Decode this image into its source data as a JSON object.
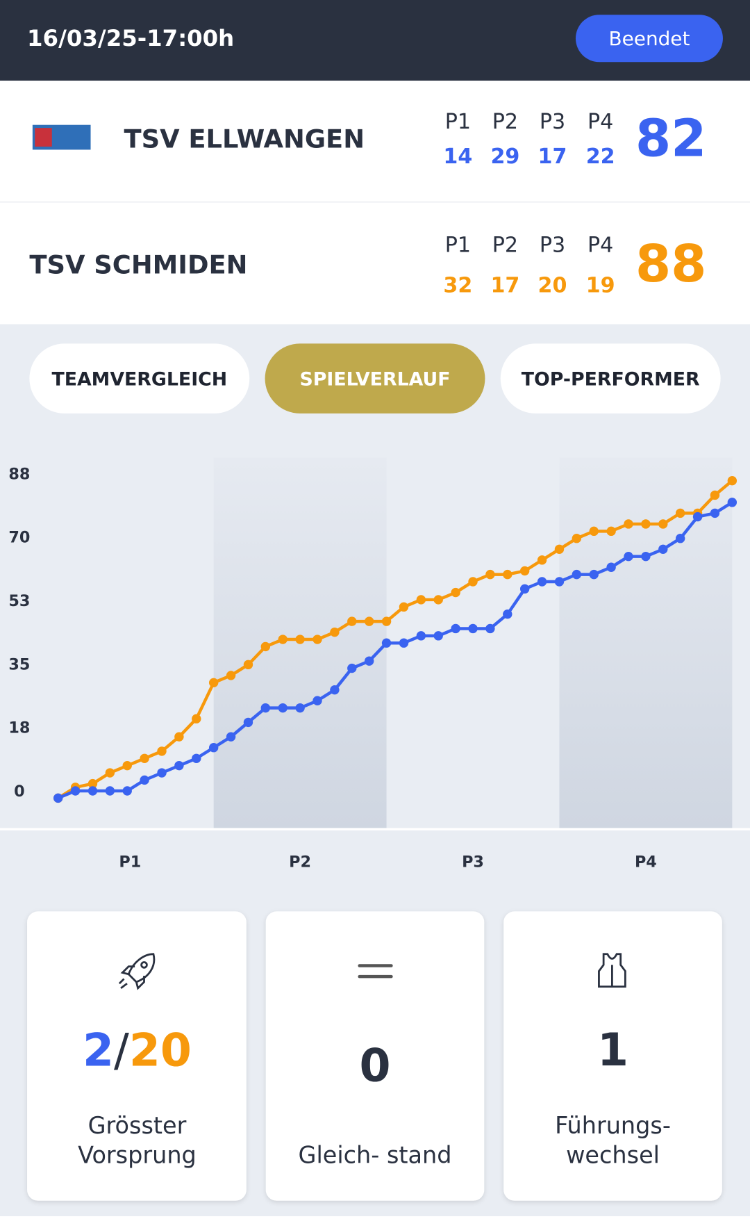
{
  "header": {
    "datetime": "16/03/25-17:00h",
    "status": "Beendet"
  },
  "teams": [
    {
      "name": "TSV ELLWANGEN",
      "period_labels": [
        "P1",
        "P2",
        "P3",
        "P4"
      ],
      "scores": [
        14,
        29,
        17,
        22
      ],
      "total": 82
    },
    {
      "name": "TSV SCHMIDEN",
      "period_labels": [
        "P1",
        "P2",
        "P3",
        "P4"
      ],
      "scores": [
        32,
        17,
        20,
        19
      ],
      "total": 88
    }
  ],
  "tabs": [
    "TEAMVERGLEICH",
    "SPIELVERLAUF",
    "TOP-PERFORMER"
  ],
  "chart_data": {
    "type": "line",
    "periods": [
      "P1",
      "P2",
      "P3",
      "P4"
    ],
    "ylim": [
      -8.4,
      94.4
    ],
    "yticks": [
      0,
      {
        "value": 17.6,
        "label": "18"
      },
      {
        "value": 35.2,
        "label": "35"
      },
      {
        "value": 52.8,
        "label": "53"
      },
      {
        "value": 70.4,
        "label": "70"
      },
      88
    ],
    "series": [
      {
        "name": "TSV SCHMIDEN",
        "color": "#f7990c",
        "values": [
          0,
          3,
          4,
          7,
          9,
          11,
          13,
          17,
          22,
          32,
          34,
          37,
          42,
          44,
          44,
          44,
          46,
          49,
          49,
          49,
          53,
          55,
          55,
          57,
          60,
          62,
          62,
          63,
          66,
          69,
          72,
          74,
          74,
          76,
          76,
          76,
          79,
          79,
          84,
          88
        ]
      },
      {
        "name": "TSV ELLWANGEN",
        "color": "#3a63f0",
        "values": [
          0,
          2,
          2,
          2,
          2,
          5,
          7,
          9,
          11,
          14,
          17,
          21,
          25,
          25,
          25,
          27,
          30,
          36,
          38,
          43,
          43,
          45,
          45,
          47,
          47,
          47,
          51,
          58,
          60,
          60,
          62,
          62,
          64,
          67,
          67,
          69,
          72,
          78,
          79,
          82
        ]
      }
    ]
  },
  "stats": [
    {
      "home": 2,
      "separator": "/",
      "away": 20,
      "label": [
        "Grösster",
        "Vorsprung"
      ]
    },
    {
      "value": 0,
      "label": "Gleich- stand"
    },
    {
      "value": 1,
      "label": [
        "Führungs-",
        "wechsel"
      ]
    }
  ]
}
